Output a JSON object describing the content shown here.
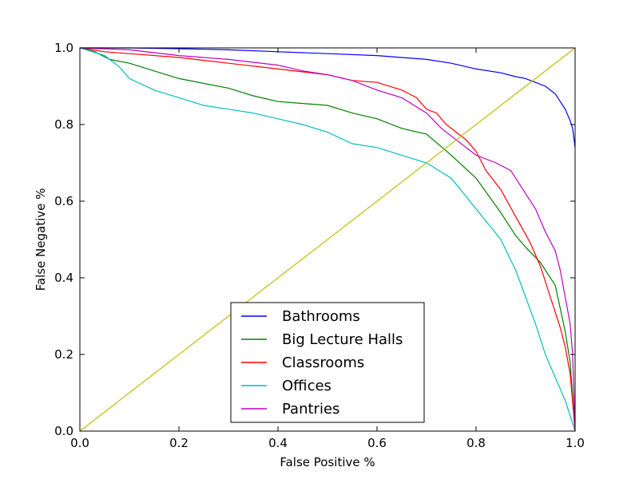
{
  "chart_data": {
    "type": "line",
    "title": "",
    "xlabel": "False Positive %",
    "ylabel": "False Negative %",
    "xlim": [
      0.0,
      1.0
    ],
    "ylim": [
      0.0,
      1.0
    ],
    "xticks": [
      "0.0",
      "0.2",
      "0.4",
      "0.6",
      "0.8",
      "1.0"
    ],
    "yticks": [
      "0.0",
      "0.2",
      "0.4",
      "0.6",
      "0.8",
      "1.0"
    ],
    "grid": false,
    "legend_position": "bottom-center",
    "series": [
      {
        "name": "Bathrooms",
        "color": "#0000ff",
        "points": [
          [
            0.0,
            1.0
          ],
          [
            0.1,
            1.0
          ],
          [
            0.2,
            0.998
          ],
          [
            0.3,
            0.995
          ],
          [
            0.4,
            0.99
          ],
          [
            0.5,
            0.985
          ],
          [
            0.6,
            0.98
          ],
          [
            0.7,
            0.97
          ],
          [
            0.75,
            0.96
          ],
          [
            0.8,
            0.945
          ],
          [
            0.85,
            0.935
          ],
          [
            0.88,
            0.925
          ],
          [
            0.9,
            0.92
          ],
          [
            0.92,
            0.91
          ],
          [
            0.94,
            0.9
          ],
          [
            0.96,
            0.88
          ],
          [
            0.97,
            0.86
          ],
          [
            0.98,
            0.84
          ],
          [
            0.99,
            0.81
          ],
          [
            0.995,
            0.79
          ],
          [
            1.0,
            0.74
          ]
        ]
      },
      {
        "name": "Big Lecture Halls",
        "color": "#008000",
        "points": [
          [
            0.0,
            1.0
          ],
          [
            0.03,
            0.99
          ],
          [
            0.06,
            0.97
          ],
          [
            0.1,
            0.96
          ],
          [
            0.15,
            0.94
          ],
          [
            0.2,
            0.92
          ],
          [
            0.3,
            0.895
          ],
          [
            0.35,
            0.875
          ],
          [
            0.4,
            0.86
          ],
          [
            0.45,
            0.855
          ],
          [
            0.5,
            0.85
          ],
          [
            0.55,
            0.83
          ],
          [
            0.6,
            0.815
          ],
          [
            0.65,
            0.79
          ],
          [
            0.7,
            0.775
          ],
          [
            0.75,
            0.72
          ],
          [
            0.8,
            0.66
          ],
          [
            0.85,
            0.57
          ],
          [
            0.88,
            0.51
          ],
          [
            0.9,
            0.48
          ],
          [
            0.93,
            0.44
          ],
          [
            0.96,
            0.38
          ],
          [
            0.97,
            0.32
          ],
          [
            0.98,
            0.26
          ],
          [
            0.99,
            0.18
          ],
          [
            1.0,
            0.0
          ]
        ]
      },
      {
        "name": "Classrooms",
        "color": "#ff0000",
        "points": [
          [
            0.0,
            1.0
          ],
          [
            0.05,
            0.99
          ],
          [
            0.1,
            0.985
          ],
          [
            0.2,
            0.975
          ],
          [
            0.3,
            0.96
          ],
          [
            0.4,
            0.945
          ],
          [
            0.5,
            0.93
          ],
          [
            0.55,
            0.915
          ],
          [
            0.6,
            0.91
          ],
          [
            0.65,
            0.89
          ],
          [
            0.68,
            0.87
          ],
          [
            0.7,
            0.84
          ],
          [
            0.72,
            0.83
          ],
          [
            0.74,
            0.8
          ],
          [
            0.76,
            0.78
          ],
          [
            0.78,
            0.76
          ],
          [
            0.8,
            0.73
          ],
          [
            0.82,
            0.68
          ],
          [
            0.85,
            0.63
          ],
          [
            0.88,
            0.56
          ],
          [
            0.91,
            0.49
          ],
          [
            0.93,
            0.43
          ],
          [
            0.95,
            0.35
          ],
          [
            0.97,
            0.27
          ],
          [
            0.98,
            0.22
          ],
          [
            0.99,
            0.15
          ],
          [
            1.0,
            0.0
          ]
        ]
      },
      {
        "name": "Offices",
        "color": "#00bfbf",
        "points": [
          [
            0.0,
            1.0
          ],
          [
            0.05,
            0.98
          ],
          [
            0.08,
            0.95
          ],
          [
            0.1,
            0.92
          ],
          [
            0.15,
            0.89
          ],
          [
            0.2,
            0.87
          ],
          [
            0.25,
            0.85
          ],
          [
            0.3,
            0.84
          ],
          [
            0.35,
            0.83
          ],
          [
            0.4,
            0.815
          ],
          [
            0.45,
            0.8
          ],
          [
            0.5,
            0.78
          ],
          [
            0.55,
            0.75
          ],
          [
            0.6,
            0.74
          ],
          [
            0.65,
            0.72
          ],
          [
            0.7,
            0.7
          ],
          [
            0.75,
            0.66
          ],
          [
            0.8,
            0.58
          ],
          [
            0.85,
            0.5
          ],
          [
            0.88,
            0.42
          ],
          [
            0.9,
            0.35
          ],
          [
            0.92,
            0.28
          ],
          [
            0.94,
            0.2
          ],
          [
            0.96,
            0.14
          ],
          [
            0.98,
            0.08
          ],
          [
            0.99,
            0.04
          ],
          [
            1.0,
            0.0
          ]
        ]
      },
      {
        "name": "Pantries",
        "color": "#bf00bf",
        "points": [
          [
            0.0,
            1.0
          ],
          [
            0.1,
            0.995
          ],
          [
            0.2,
            0.98
          ],
          [
            0.3,
            0.97
          ],
          [
            0.4,
            0.955
          ],
          [
            0.45,
            0.94
          ],
          [
            0.5,
            0.93
          ],
          [
            0.55,
            0.915
          ],
          [
            0.6,
            0.89
          ],
          [
            0.65,
            0.87
          ],
          [
            0.7,
            0.83
          ],
          [
            0.73,
            0.79
          ],
          [
            0.76,
            0.76
          ],
          [
            0.8,
            0.72
          ],
          [
            0.84,
            0.7
          ],
          [
            0.87,
            0.68
          ],
          [
            0.9,
            0.62
          ],
          [
            0.92,
            0.58
          ],
          [
            0.94,
            0.52
          ],
          [
            0.96,
            0.47
          ],
          [
            0.97,
            0.42
          ],
          [
            0.98,
            0.35
          ],
          [
            0.99,
            0.28
          ],
          [
            0.995,
            0.2
          ],
          [
            1.0,
            0.0
          ]
        ]
      },
      {
        "name": "",
        "color": "#bfbf00",
        "points": [
          [
            0.0,
            0.0
          ],
          [
            1.0,
            1.0
          ]
        ]
      }
    ]
  }
}
